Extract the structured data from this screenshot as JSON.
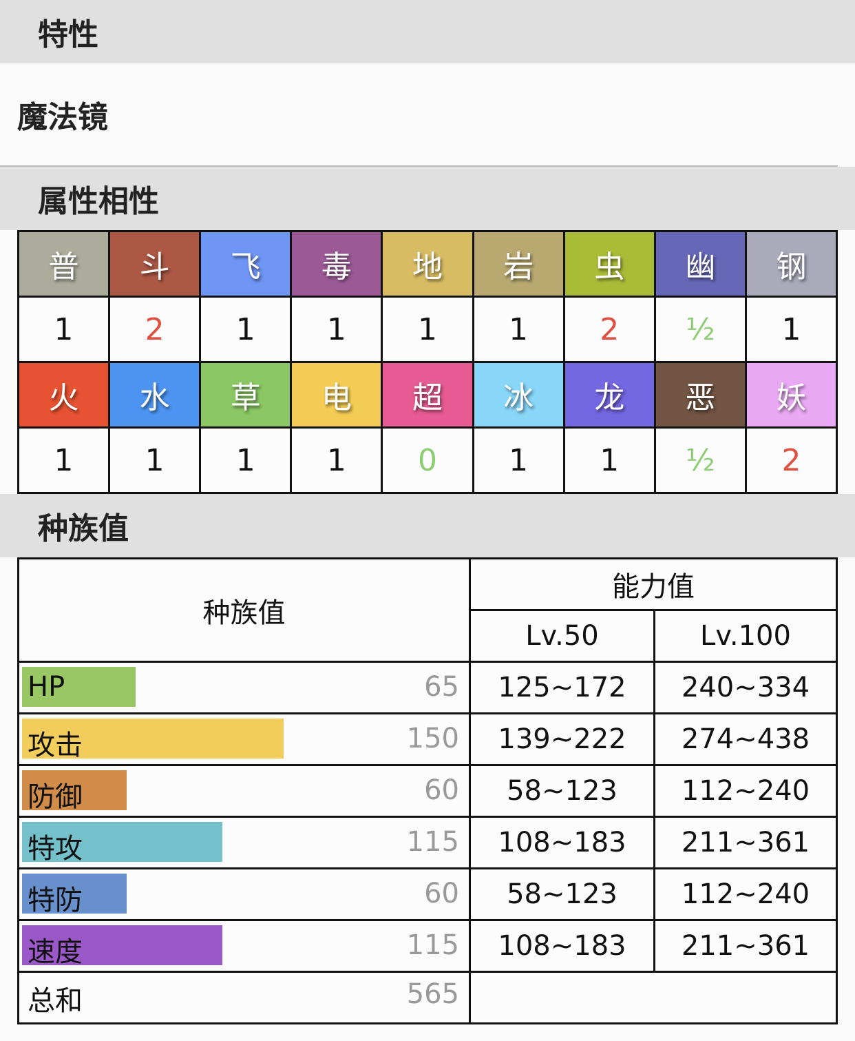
{
  "ability_section": {
    "title": "特性",
    "ability": "魔法镜"
  },
  "type_section": {
    "title": "属性相性",
    "rows": [
      [
        {
          "name": "普",
          "color": "#acac9c",
          "value": "1",
          "vcolor": "#111"
        },
        {
          "name": "斗",
          "color": "#ac5845",
          "value": "2",
          "vcolor": "#e05040"
        },
        {
          "name": "飞",
          "color": "#6f95f5",
          "value": "1",
          "vcolor": "#111"
        },
        {
          "name": "毒",
          "color": "#9b5a96",
          "value": "1",
          "vcolor": "#111"
        },
        {
          "name": "地",
          "color": "#d8bc64",
          "value": "1",
          "vcolor": "#111"
        },
        {
          "name": "岩",
          "color": "#b9a970",
          "value": "1",
          "vcolor": "#111"
        },
        {
          "name": "虫",
          "color": "#a9bc38",
          "value": "2",
          "vcolor": "#e05040"
        },
        {
          "name": "幽",
          "color": "#6767b8",
          "value": "½",
          "vcolor": "#8ccd74"
        },
        {
          "name": "钢",
          "color": "#aaaabb",
          "value": "1",
          "vcolor": "#111"
        }
      ],
      [
        {
          "name": "火",
          "color": "#e65232",
          "value": "1",
          "vcolor": "#111"
        },
        {
          "name": "水",
          "color": "#4d94f2",
          "value": "1",
          "vcolor": "#111"
        },
        {
          "name": "草",
          "color": "#8bc864",
          "value": "1",
          "vcolor": "#111"
        },
        {
          "name": "电",
          "color": "#f3cb55",
          "value": "1",
          "vcolor": "#111"
        },
        {
          "name": "超",
          "color": "#e65b92",
          "value": "0",
          "vcolor": "#8ccd74"
        },
        {
          "name": "冰",
          "color": "#88d6f8",
          "value": "1",
          "vcolor": "#111"
        },
        {
          "name": "龙",
          "color": "#7467e2",
          "value": "1",
          "vcolor": "#111"
        },
        {
          "name": "恶",
          "color": "#725543",
          "value": "½",
          "vcolor": "#8ccd74"
        },
        {
          "name": "妖",
          "color": "#eaa9f5",
          "value": "2",
          "vcolor": "#e05040"
        }
      ]
    ]
  },
  "stats_section": {
    "title": "种族值",
    "col_base": "种族值",
    "col_stats": "能力值",
    "lv50": "Lv.50",
    "lv100": "Lv.100",
    "stats": [
      {
        "label": "HP",
        "value": 65,
        "lv50": "125~172",
        "lv100": "240~334",
        "color": "#98c764"
      },
      {
        "label": "攻击",
        "value": 150,
        "lv50": "139~222",
        "lv100": "274~438",
        "color": "#f2cd5b"
      },
      {
        "label": "防御",
        "value": 60,
        "lv50": "58~123",
        "lv100": "112~240",
        "color": "#d08c48"
      },
      {
        "label": "特攻",
        "value": 115,
        "lv50": "108~183",
        "lv100": "211~361",
        "color": "#74c1cc"
      },
      {
        "label": "特防",
        "value": 60,
        "lv50": "58~123",
        "lv100": "112~240",
        "color": "#6890cc"
      },
      {
        "label": "速度",
        "value": 115,
        "lv50": "108~183",
        "lv100": "211~361",
        "color": "#9b58c9"
      }
    ],
    "total_label": "总和",
    "total": 565
  }
}
